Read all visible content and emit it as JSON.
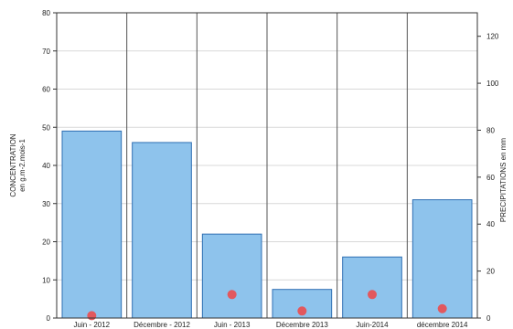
{
  "chart_data": {
    "type": "bar",
    "categories": [
      "Juin - 2012",
      "Décembre - 2012",
      "Juin - 2013",
      "Décembre 2013",
      "Juin-2014",
      "décembre 2014"
    ],
    "series": [
      {
        "kind": "bar",
        "axis": "left",
        "values": [
          49,
          46,
          22,
          7.5,
          16,
          31
        ],
        "color": "#8ec3ec",
        "edge_color": "#2f6fb3"
      },
      {
        "kind": "scatter",
        "axis": "right",
        "values": [
          1,
          null,
          10,
          3,
          10,
          4
        ],
        "color": "#e2585e"
      }
    ],
    "y_left": {
      "label_line1": "CONCENTRATION",
      "label_line2": "en g.m-2.mois-1",
      "ylim": [
        0,
        80
      ],
      "ticks": [
        0,
        10,
        20,
        30,
        40,
        50,
        60,
        70,
        80
      ]
    },
    "y_right": {
      "label": "PRECIPITATIONS en mm",
      "ylim": [
        0,
        130
      ],
      "ticks": [
        0,
        20,
        40,
        60,
        80,
        100,
        120
      ]
    },
    "grid": true,
    "grid_color": "#d9d9d9"
  }
}
